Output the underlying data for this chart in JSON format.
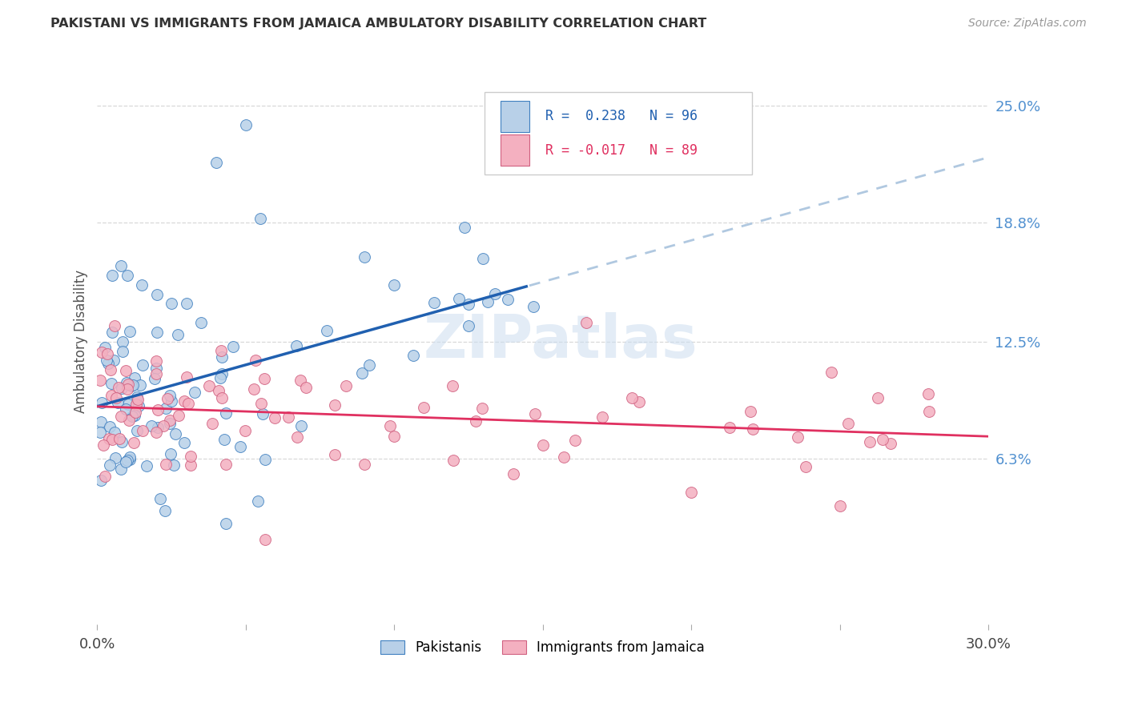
{
  "title": "PAKISTANI VS IMMIGRANTS FROM JAMAICA AMBULATORY DISABILITY CORRELATION CHART",
  "source": "Source: ZipAtlas.com",
  "ylabel": "Ambulatory Disability",
  "ytick_vals": [
    0.25,
    0.188,
    0.125,
    0.063
  ],
  "ytick_labels": [
    "25.0%",
    "18.8%",
    "12.5%",
    "6.3%"
  ],
  "xmin": 0.0,
  "xmax": 0.3,
  "ymin": -0.025,
  "ymax": 0.275,
  "color_blue": "#b8d0e8",
  "color_pink": "#f4b0c0",
  "trendline_blue": "#2060b0",
  "trendline_pink": "#e03060",
  "trendline_ext_color": "#b0c8e0",
  "marker_size": 100,
  "blue_edge": "#4080c0",
  "pink_edge": "#d06080"
}
